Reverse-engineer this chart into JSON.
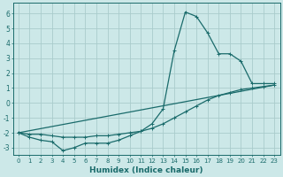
{
  "xlabel": "Humidex (Indice chaleur)",
  "bg_color": "#cce8e8",
  "grid_color": "#aacccc",
  "line_color": "#1a6b6b",
  "xlim": [
    -0.5,
    23.5
  ],
  "ylim": [
    -3.5,
    6.7
  ],
  "xticks": [
    0,
    1,
    2,
    3,
    4,
    5,
    6,
    7,
    8,
    9,
    10,
    11,
    12,
    13,
    14,
    15,
    16,
    17,
    18,
    19,
    20,
    21,
    22,
    23
  ],
  "yticks": [
    -3,
    -2,
    -1,
    0,
    1,
    2,
    3,
    4,
    5,
    6
  ],
  "line1_x": [
    0,
    1,
    2,
    3,
    4,
    5,
    6,
    7,
    8,
    9,
    10,
    11,
    12,
    13,
    14,
    15,
    16,
    17,
    18,
    19,
    20,
    21,
    22,
    23
  ],
  "line1_y": [
    -2.0,
    -2.3,
    -2.5,
    -2.6,
    -3.2,
    -3.0,
    -2.7,
    -2.7,
    -2.7,
    -2.5,
    -2.2,
    -1.9,
    -1.4,
    -0.4,
    3.5,
    6.1,
    5.8,
    4.7,
    3.3,
    3.3,
    2.8,
    1.3,
    1.3,
    1.3
  ],
  "line2_x": [
    0,
    1,
    2,
    3,
    4,
    5,
    6,
    7,
    8,
    9,
    10,
    11,
    12,
    13,
    14,
    15,
    16,
    17,
    18,
    19,
    20,
    21,
    22,
    23
  ],
  "line2_y": [
    -2.0,
    -2.1,
    -2.1,
    -2.2,
    -2.3,
    -2.3,
    -2.3,
    -2.2,
    -2.2,
    -2.1,
    -2.0,
    -1.9,
    -1.7,
    -1.4,
    -1.0,
    -0.6,
    -0.2,
    0.2,
    0.5,
    0.7,
    0.9,
    1.0,
    1.1,
    1.2
  ],
  "line3_x": [
    0,
    23
  ],
  "line3_y": [
    -2.0,
    1.2
  ]
}
